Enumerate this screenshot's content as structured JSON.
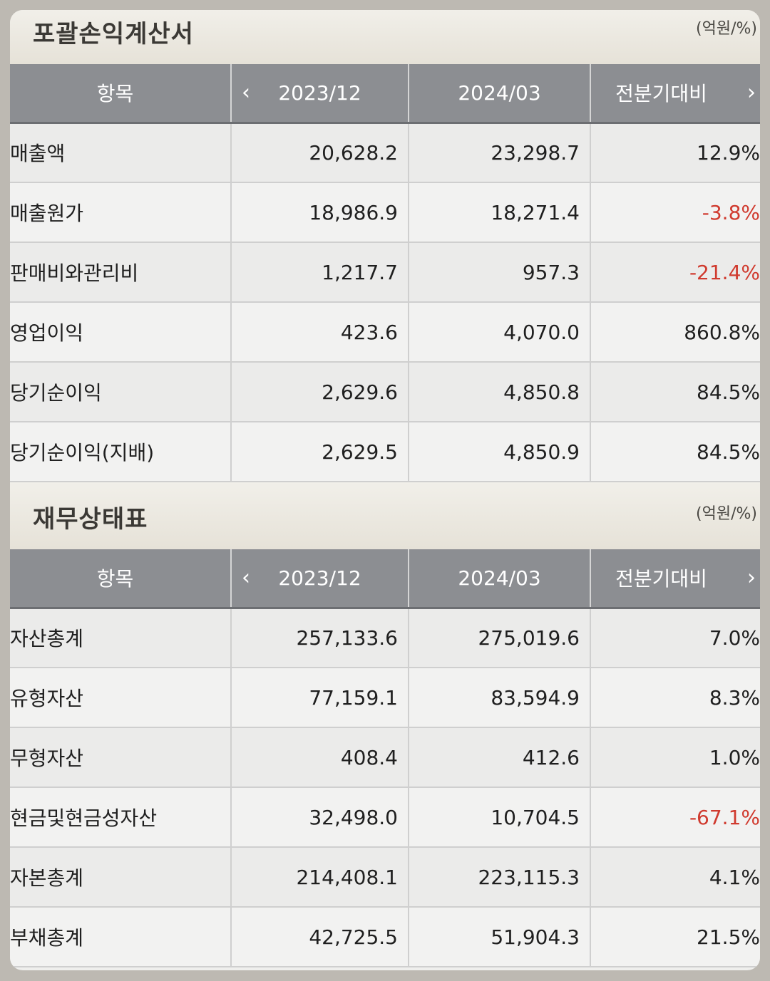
{
  "income": {
    "title": "포괄손익계산서",
    "unit": "(억원/%)",
    "headers": [
      "항목",
      "2023/12",
      "2024/03",
      "전분기대비"
    ],
    "rows": [
      {
        "name": "매출액",
        "v1": "20,628.2",
        "v2": "23,298.7",
        "v3": "12.9%",
        "neg": false
      },
      {
        "name": "매출원가",
        "v1": "18,986.9",
        "v2": "18,271.4",
        "v3": "-3.8%",
        "neg": true
      },
      {
        "name": "판매비와관리비",
        "v1": "1,217.7",
        "v2": "957.3",
        "v3": "-21.4%",
        "neg": true
      },
      {
        "name": "영업이익",
        "v1": "423.6",
        "v2": "4,070.0",
        "v3": "860.8%",
        "neg": false
      },
      {
        "name": "당기순이익",
        "v1": "2,629.6",
        "v2": "4,850.8",
        "v3": "84.5%",
        "neg": false
      },
      {
        "name": "당기순이익(지배)",
        "v1": "2,629.5",
        "v2": "4,850.9",
        "v3": "84.5%",
        "neg": false
      }
    ]
  },
  "balance": {
    "title": "재무상태표",
    "unit": "(억원/%)",
    "headers": [
      "항목",
      "2023/12",
      "2024/03",
      "전분기대비"
    ],
    "rows": [
      {
        "name": "자산총계",
        "v1": "257,133.6",
        "v2": "275,019.6",
        "v3": "7.0%",
        "neg": false
      },
      {
        "name": "유형자산",
        "v1": "77,159.1",
        "v2": "83,594.9",
        "v3": "8.3%",
        "neg": false
      },
      {
        "name": "무형자산",
        "v1": "408.4",
        "v2": "412.6",
        "v3": "1.0%",
        "neg": false
      },
      {
        "name": "현금및현금성자산",
        "v1": "32,498.0",
        "v2": "10,704.5",
        "v3": "-67.1%",
        "neg": true
      },
      {
        "name": "자본총계",
        "v1": "214,408.1",
        "v2": "223,115.3",
        "v3": "4.1%",
        "neg": false
      },
      {
        "name": "부채총계",
        "v1": "42,725.5",
        "v2": "51,904.3",
        "v3": "21.5%",
        "neg": false
      }
    ]
  },
  "icons": {
    "prev": "chevron-left-icon",
    "next": "chevron-right-icon"
  },
  "colors": {
    "negative": "#d03a2e",
    "header_bg": "#8c8e92"
  }
}
